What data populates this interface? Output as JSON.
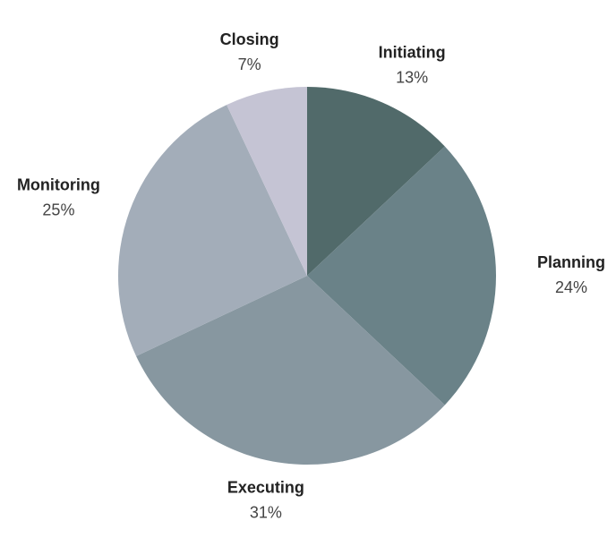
{
  "chart_data": {
    "type": "pie",
    "categories": [
      "Initiating",
      "Planning",
      "Executing",
      "Monitoring",
      "Closing"
    ],
    "values": [
      13,
      24,
      31,
      25,
      7
    ],
    "value_labels": [
      "13%",
      "24%",
      "31%",
      "25%",
      "7%"
    ],
    "colors": [
      "#516a6a",
      "#6a8288",
      "#8797a0",
      "#a3adb9",
      "#c5c4d4"
    ]
  }
}
